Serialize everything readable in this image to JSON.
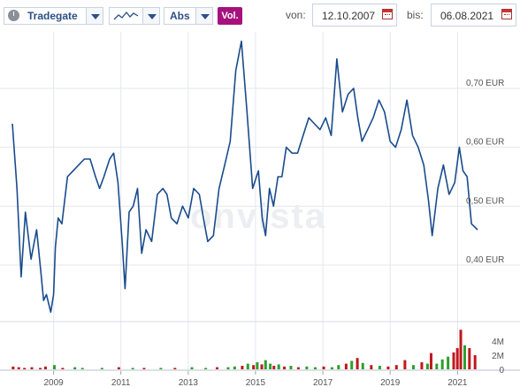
{
  "toolbar": {
    "exchange": "Tradegate",
    "scale_mode": "Abs",
    "volume_toggle": "Vol.",
    "from_label": "von:",
    "from_date": "12.10.2007",
    "to_label": "bis:",
    "to_date": "06.08.2021",
    "icons": [
      "clock-icon",
      "line-chart-icon",
      "calendar-icon"
    ]
  },
  "watermark": "onvista",
  "colors": {
    "price_line": "#1a4b8c",
    "volume_up": "#2ca02c",
    "volume_down": "#c0181e",
    "accent": "#a6127d"
  },
  "chart_data": {
    "type": "line",
    "currency": "EUR",
    "grid": true,
    "x_range": [
      "2007-10-12",
      "2021-08-06"
    ],
    "xticks": [
      "2009",
      "2011",
      "2013",
      "2015",
      "2017",
      "2019",
      "2021"
    ],
    "yticks": [
      "0,40 EUR",
      "0,50 EUR",
      "0,60 EUR",
      "0,70 EUR"
    ],
    "ylim": [
      0.31,
      0.79
    ],
    "series": [
      {
        "x": [
          "2007-10-12",
          "2007-12-01",
          "2008-01-15",
          "2008-03-01",
          "2008-05-01",
          "2008-07-01",
          "2008-08-15",
          "2008-09-15",
          "2008-10-15",
          "2008-12-01",
          "2009-01-01",
          "2009-01-20",
          "2009-02-20",
          "2009-04-01",
          "2009-06-01",
          "2009-08-01",
          "2009-10-01",
          "2009-12-01",
          "2010-02-01",
          "2010-04-01",
          "2010-05-15",
          "2010-07-01",
          "2010-09-01",
          "2010-10-15",
          "2010-12-01",
          "2011-01-15",
          "2011-02-15",
          "2011-04-01",
          "2011-05-15",
          "2011-07-01",
          "2011-08-15",
          "2011-10-01",
          "2011-12-01",
          "2012-02-01",
          "2012-04-01",
          "2012-05-15",
          "2012-07-01",
          "2012-09-01",
          "2012-11-01",
          "2013-01-01",
          "2013-03-01",
          "2013-05-01",
          "2013-06-15",
          "2013-08-01",
          "2013-10-01",
          "2013-12-01",
          "2014-02-01",
          "2014-04-01",
          "2014-06-01",
          "2014-08-01",
          "2014-10-01",
          "2014-12-01",
          "2015-02-01",
          "2015-03-15",
          "2015-04-20",
          "2015-06-01",
          "2015-07-15",
          "2015-09-01",
          "2015-10-15",
          "2015-12-01",
          "2016-02-01",
          "2016-04-01",
          "2016-06-01",
          "2016-08-01",
          "2016-10-01",
          "2016-12-01",
          "2017-02-01",
          "2017-04-01",
          "2017-06-01",
          "2017-08-01",
          "2017-10-01",
          "2017-12-01",
          "2018-01-15",
          "2018-03-01",
          "2018-05-01",
          "2018-07-01",
          "2018-09-01",
          "2018-11-01",
          "2019-01-01",
          "2019-03-01",
          "2019-05-01",
          "2019-07-01",
          "2019-09-01",
          "2019-11-01",
          "2020-01-01",
          "2020-02-20",
          "2020-04-01",
          "2020-06-01",
          "2020-08-01",
          "2020-10-01",
          "2020-12-01",
          "2021-01-20",
          "2021-03-01",
          "2021-04-15",
          "2021-06-01",
          "2021-08-06"
        ],
        "y": [
          0.64,
          0.53,
          0.38,
          0.49,
          0.41,
          0.46,
          0.39,
          0.34,
          0.35,
          0.32,
          0.35,
          0.43,
          0.48,
          0.47,
          0.55,
          0.56,
          0.57,
          0.58,
          0.58,
          0.55,
          0.53,
          0.55,
          0.58,
          0.59,
          0.54,
          0.44,
          0.36,
          0.49,
          0.5,
          0.53,
          0.42,
          0.46,
          0.44,
          0.52,
          0.53,
          0.52,
          0.48,
          0.47,
          0.5,
          0.48,
          0.53,
          0.52,
          0.48,
          0.44,
          0.45,
          0.53,
          0.57,
          0.61,
          0.73,
          0.78,
          0.66,
          0.53,
          0.56,
          0.48,
          0.45,
          0.53,
          0.5,
          0.55,
          0.55,
          0.6,
          0.59,
          0.59,
          0.62,
          0.65,
          0.64,
          0.63,
          0.65,
          0.62,
          0.75,
          0.66,
          0.69,
          0.7,
          0.65,
          0.61,
          0.63,
          0.65,
          0.68,
          0.66,
          0.61,
          0.6,
          0.63,
          0.68,
          0.62,
          0.6,
          0.57,
          0.51,
          0.45,
          0.53,
          0.57,
          0.52,
          0.54,
          0.6,
          0.56,
          0.55,
          0.47,
          0.46
        ]
      }
    ],
    "volume": {
      "yticks": [
        "4M",
        "2M",
        "0"
      ],
      "ylim": [
        0,
        6
      ],
      "bars": [
        {
          "x": "2007-10-20",
          "v": 0.4,
          "dir": "down"
        },
        {
          "x": "2007-12-20",
          "v": 0.3,
          "dir": "up"
        },
        {
          "x": "2008-02-20",
          "v": 0.2,
          "dir": "down"
        },
        {
          "x": "2008-05-10",
          "v": 0.3,
          "dir": "down"
        },
        {
          "x": "2008-08-10",
          "v": 0.2,
          "dir": "down"
        },
        {
          "x": "2008-10-05",
          "v": 0.4,
          "dir": "down"
        },
        {
          "x": "2009-01-10",
          "v": 0.6,
          "dir": "green"
        },
        {
          "x": "2009-04-10",
          "v": 0.2,
          "dir": "down"
        },
        {
          "x": "2009-08-20",
          "v": 0.3,
          "dir": "green"
        },
        {
          "x": "2009-11-10",
          "v": 0.2,
          "dir": "green"
        },
        {
          "x": "2010-06-10",
          "v": 0.2,
          "dir": "green"
        },
        {
          "x": "2010-12-10",
          "v": 0.3,
          "dir": "down"
        },
        {
          "x": "2011-05-10",
          "v": 0.2,
          "dir": "green"
        },
        {
          "x": "2011-09-10",
          "v": 0.2,
          "dir": "down"
        },
        {
          "x": "2012-03-10",
          "v": 0.2,
          "dir": "green"
        },
        {
          "x": "2012-08-10",
          "v": 0.2,
          "dir": "down"
        },
        {
          "x": "2013-02-10",
          "v": 0.3,
          "dir": "green"
        },
        {
          "x": "2013-07-10",
          "v": 0.2,
          "dir": "green"
        },
        {
          "x": "2013-11-10",
          "v": 0.3,
          "dir": "down"
        },
        {
          "x": "2014-03-10",
          "v": 0.3,
          "dir": "green"
        },
        {
          "x": "2014-05-20",
          "v": 0.4,
          "dir": "green"
        },
        {
          "x": "2014-08-10",
          "v": 0.5,
          "dir": "down"
        },
        {
          "x": "2014-10-10",
          "v": 0.8,
          "dir": "green"
        },
        {
          "x": "2014-12-10",
          "v": 0.6,
          "dir": "down"
        },
        {
          "x": "2015-01-20",
          "v": 1.0,
          "dir": "green"
        },
        {
          "x": "2015-03-10",
          "v": 0.7,
          "dir": "down"
        },
        {
          "x": "2015-04-20",
          "v": 1.3,
          "dir": "green"
        },
        {
          "x": "2015-06-10",
          "v": 0.8,
          "dir": "green"
        },
        {
          "x": "2015-07-20",
          "v": 0.5,
          "dir": "down"
        },
        {
          "x": "2015-09-10",
          "v": 0.7,
          "dir": "green"
        },
        {
          "x": "2015-11-10",
          "v": 0.4,
          "dir": "down"
        },
        {
          "x": "2016-01-20",
          "v": 0.5,
          "dir": "green"
        },
        {
          "x": "2016-04-10",
          "v": 0.3,
          "dir": "down"
        },
        {
          "x": "2016-07-10",
          "v": 0.4,
          "dir": "green"
        },
        {
          "x": "2016-10-10",
          "v": 0.3,
          "dir": "green"
        },
        {
          "x": "2017-01-10",
          "v": 0.4,
          "dir": "down"
        },
        {
          "x": "2017-04-10",
          "v": 0.3,
          "dir": "green"
        },
        {
          "x": "2017-06-20",
          "v": 0.6,
          "dir": "green"
        },
        {
          "x": "2017-09-10",
          "v": 0.8,
          "dir": "down"
        },
        {
          "x": "2017-11-10",
          "v": 1.2,
          "dir": "green"
        },
        {
          "x": "2018-01-10",
          "v": 1.6,
          "dir": "down"
        },
        {
          "x": "2018-03-10",
          "v": 0.9,
          "dir": "green"
        },
        {
          "x": "2018-06-10",
          "v": 0.6,
          "dir": "down"
        },
        {
          "x": "2018-09-10",
          "v": 0.5,
          "dir": "green"
        },
        {
          "x": "2018-12-10",
          "v": 0.4,
          "dir": "down"
        },
        {
          "x": "2019-03-10",
          "v": 0.6,
          "dir": "down"
        },
        {
          "x": "2019-06-10",
          "v": 1.3,
          "dir": "down"
        },
        {
          "x": "2019-09-10",
          "v": 0.6,
          "dir": "green"
        },
        {
          "x": "2019-12-10",
          "v": 1.0,
          "dir": "down"
        },
        {
          "x": "2020-02-10",
          "v": 0.8,
          "dir": "green"
        },
        {
          "x": "2020-03-20",
          "v": 2.3,
          "dir": "down"
        },
        {
          "x": "2020-05-20",
          "v": 0.8,
          "dir": "green"
        },
        {
          "x": "2020-07-20",
          "v": 1.4,
          "dir": "green"
        },
        {
          "x": "2020-09-20",
          "v": 1.8,
          "dir": "green"
        },
        {
          "x": "2020-11-20",
          "v": 2.4,
          "dir": "down"
        },
        {
          "x": "2020-12-30",
          "v": 3.0,
          "dir": "down"
        },
        {
          "x": "2021-02-05",
          "v": 5.6,
          "dir": "down"
        },
        {
          "x": "2021-03-20",
          "v": 3.4,
          "dir": "green"
        },
        {
          "x": "2021-05-10",
          "v": 3.0,
          "dir": "down"
        },
        {
          "x": "2021-07-10",
          "v": 2.0,
          "dir": "down"
        }
      ]
    }
  }
}
